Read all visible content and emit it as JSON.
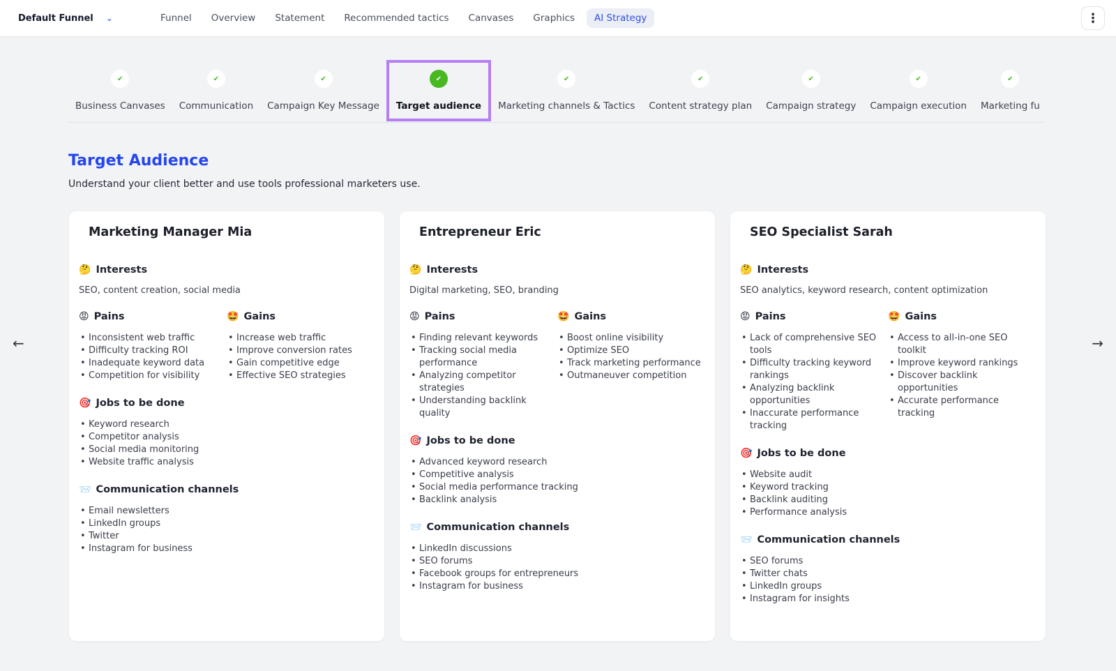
{
  "header": {
    "funnel": "Default Funnel",
    "nav": [
      "Funnel",
      "Overview",
      "Statement",
      "Recommended tactics",
      "Canvases",
      "Graphics",
      "AI Strategy"
    ],
    "active": "AI Strategy"
  },
  "steps": [
    "Business Canvases",
    "Communication",
    "Campaign Key Message",
    "Target audience",
    "Marketing channels & Tactics",
    "Content strategy plan",
    "Campaign strategy",
    "Campaign execution",
    "Marketing fu"
  ],
  "current_step": "Target audience",
  "page": {
    "title": "Target Audience",
    "subtitle": "Understand your client better and use tools professional marketers use."
  },
  "labels": {
    "interests": "Interests",
    "pains": "Pains",
    "gains": "Gains",
    "jobs": "Jobs to be done",
    "channels": "Communication channels"
  },
  "personas": [
    {
      "name": "Marketing Manager Mia",
      "interests": "SEO, content creation, social media",
      "pains": [
        "Inconsistent web traffic",
        "Difficulty tracking ROI",
        "Inadequate keyword data",
        "Competition for visibility"
      ],
      "gains": [
        "Increase web traffic",
        "Improve conversion rates",
        "Gain competitive edge",
        "Effective SEO strategies"
      ],
      "jobs": [
        "Keyword research",
        "Competitor analysis",
        "Social media monitoring",
        "Website traffic analysis"
      ],
      "channels": [
        "Email newsletters",
        "LinkedIn groups",
        "Twitter",
        "Instagram for business"
      ]
    },
    {
      "name": "Entrepreneur Eric",
      "interests": "Digital marketing, SEO, branding",
      "pains": [
        "Finding relevant keywords",
        "Tracking social media performance",
        "Analyzing competitor strategies",
        "Understanding backlink quality"
      ],
      "gains": [
        "Boost online visibility",
        "Optimize SEO",
        "Track marketing performance",
        "Outmaneuver competition"
      ],
      "jobs": [
        "Advanced keyword research",
        "Competitive analysis",
        "Social media performance tracking",
        "Backlink analysis"
      ],
      "channels": [
        "LinkedIn discussions",
        "SEO forums",
        "Facebook groups for entrepreneurs",
        "Instagram for business"
      ]
    },
    {
      "name": "SEO Specialist Sarah",
      "interests": "SEO analytics, keyword research, content optimization",
      "pains": [
        "Lack of comprehensive SEO tools",
        "Difficulty tracking keyword rankings",
        "Analyzing backlink opportunities",
        "Inaccurate performance tracking"
      ],
      "gains": [
        "Access to all-in-one SEO toolkit",
        "Improve keyword rankings",
        "Discover backlink opportunities",
        "Accurate performance tracking"
      ],
      "jobs": [
        "Website audit",
        "Keyword tracking",
        "Backlink auditing",
        "Performance analysis"
      ],
      "channels": [
        "SEO forums",
        "Twitter chats",
        "LinkedIn groups",
        "Instagram for insights"
      ]
    }
  ],
  "colors": {
    "accent": "#2446ee",
    "step_highlight": "#b57ef5",
    "check": "#47b820"
  }
}
